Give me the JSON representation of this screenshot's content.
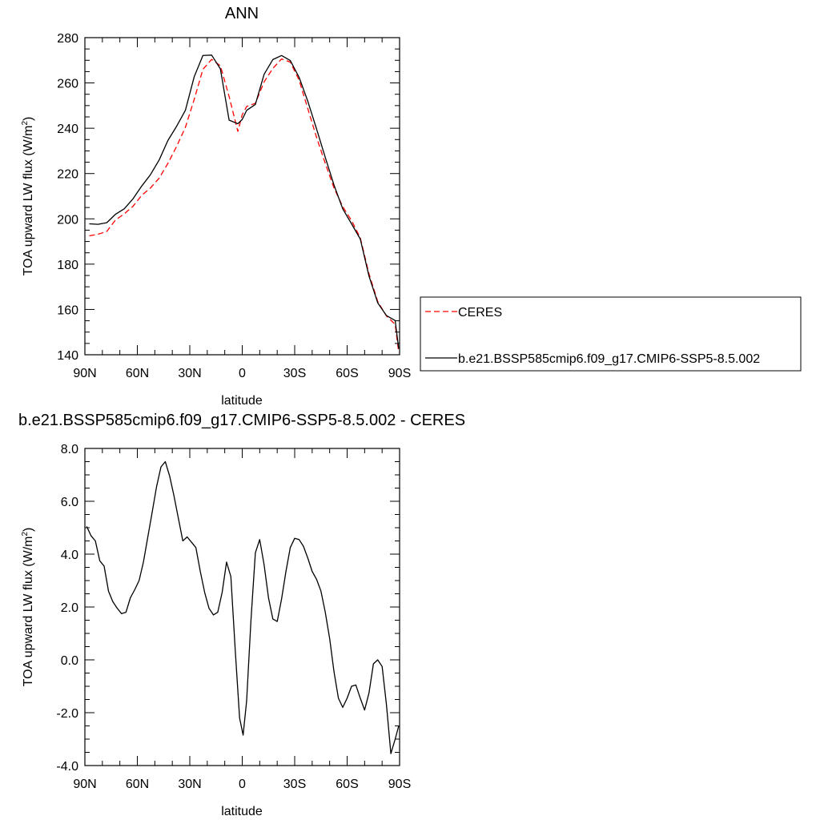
{
  "chart_data": [
    {
      "type": "line",
      "title": "ANN",
      "xlabel": "latitude",
      "ylabel_base": "TOA upward LW flux (W/m",
      "ylabel_sup": "2",
      "ylabel_end": ")",
      "xlim": [
        90,
        -90
      ],
      "ylim": [
        140,
        280
      ],
      "x_ticks": [
        90,
        60,
        30,
        0,
        -30,
        -60,
        -90
      ],
      "x_tick_labels": [
        "90N",
        "60N",
        "30N",
        "0",
        "30S",
        "60S",
        "90S"
      ],
      "y_ticks": [
        140,
        160,
        180,
        200,
        220,
        240,
        260,
        280
      ],
      "y_tick_labels": [
        "140",
        "160",
        "180",
        "200",
        "220",
        "240",
        "260",
        "280"
      ],
      "legend_position": "right",
      "series": [
        {
          "name": "CERES",
          "color": "#ff0000",
          "dash": "dashed",
          "x": [
            87.5,
            82.5,
            77.5,
            72.5,
            67.5,
            62.5,
            57.5,
            52.5,
            47.5,
            42.5,
            37.5,
            32.5,
            27.5,
            22.5,
            17.5,
            12.5,
            7.5,
            2.5,
            0,
            -2.5,
            -7.5,
            -12.5,
            -17.5,
            -22.5,
            -27.5,
            -32.5,
            -37.5,
            -42.5,
            -47.5,
            -52.5,
            -57.5,
            -62.5,
            -67.5,
            -72.5,
            -77.5,
            -82.5,
            -87.5,
            -89.5
          ],
          "y": [
            192.5,
            193.2,
            194.4,
            199.5,
            202.2,
            205.5,
            210.4,
            213.6,
            218,
            224.5,
            232,
            240.4,
            252.7,
            266,
            270.4,
            267.6,
            254,
            238.6,
            246,
            249.6,
            251,
            260.5,
            266.4,
            270.6,
            269.2,
            261.3,
            248.6,
            236,
            224.5,
            213.6,
            205.4,
            199.2,
            191.6,
            175.7,
            163.5,
            157.1,
            153.4,
            141
          ]
        },
        {
          "name": "b.e21.BSSP585cmip6.f09_g17.CMIP6-SSP5-8.5.002",
          "color": "#000000",
          "dash": "solid",
          "x": [
            87.5,
            82.5,
            77.5,
            72.5,
            67.5,
            62.5,
            57.5,
            52.5,
            47.5,
            42.5,
            37.5,
            32.5,
            27.5,
            22.5,
            17.5,
            12.5,
            7.5,
            2.5,
            0,
            -2.5,
            -7.5,
            -12.5,
            -17.5,
            -22.5,
            -27.5,
            -32.5,
            -37.5,
            -42.5,
            -47.5,
            -52.5,
            -57.5,
            -62.5,
            -67.5,
            -72.5,
            -77.5,
            -82.5,
            -87.5,
            -89.5
          ],
          "y": [
            197.8,
            197.6,
            198.3,
            202,
            204.4,
            208.8,
            214.5,
            219.5,
            226,
            234.6,
            240.9,
            247.9,
            262.7,
            272.1,
            272.3,
            266.2,
            243.6,
            242,
            243.9,
            247.9,
            250.5,
            263.8,
            270.3,
            272.1,
            269.9,
            262.5,
            251.9,
            239.7,
            227.1,
            214.9,
            204.4,
            197.8,
            191.1,
            174.7,
            162.9,
            157.3,
            155.1,
            142.7
          ]
        }
      ]
    },
    {
      "type": "line",
      "title": "b.e21.BSSP585cmip6.f09_g17.CMIP6-SSP5-8.5.002 - CERES",
      "xlabel": "latitude",
      "ylabel_base": "TOA upward LW flux (W/m",
      "ylabel_sup": "2",
      "ylabel_end": ")",
      "xlim": [
        90,
        -90
      ],
      "ylim": [
        -4,
        8
      ],
      "x_ticks": [
        90,
        60,
        30,
        0,
        -30,
        -60,
        -90
      ],
      "x_tick_labels": [
        "90N",
        "60N",
        "30N",
        "0",
        "30S",
        "60S",
        "90S"
      ],
      "y_ticks": [
        -4,
        -2,
        0,
        2,
        4,
        6,
        8
      ],
      "y_tick_labels": [
        "-4.0",
        "-2.0",
        "0.0",
        "2.0",
        "4.0",
        "6.0",
        "8.0"
      ],
      "series": [
        {
          "color": "#000000",
          "dash": "solid",
          "x": [
            89,
            86.5,
            84,
            81.5,
            79,
            76.5,
            74,
            71.5,
            69,
            66.5,
            64,
            61.5,
            59,
            56.5,
            54,
            51.5,
            49,
            46.5,
            44,
            41.5,
            39,
            36.5,
            34,
            31.5,
            29,
            26.5,
            24,
            21.5,
            19,
            16.5,
            14,
            11.5,
            9,
            6.5,
            4,
            1.5,
            -0.5,
            -2.5,
            -5,
            -7.5,
            -10,
            -12.5,
            -15,
            -17.5,
            -20,
            -22.5,
            -25,
            -27.5,
            -30,
            -32.5,
            -35,
            -37.5,
            -40,
            -42.5,
            -45,
            -47.5,
            -50,
            -52.5,
            -55,
            -57.5,
            -60,
            -62.5,
            -65,
            -67.5,
            -70,
            -72.5,
            -75,
            -77.5,
            -80,
            -82.5,
            -85,
            -87.5,
            -89.5
          ],
          "y": [
            5.05,
            4.7,
            4.5,
            3.75,
            3.55,
            2.6,
            2.2,
            1.95,
            1.75,
            1.8,
            2.35,
            2.65,
            3.0,
            3.7,
            4.65,
            5.6,
            6.55,
            7.3,
            7.5,
            6.95,
            6.2,
            5.35,
            4.5,
            4.65,
            4.45,
            4.25,
            3.35,
            2.55,
            1.95,
            1.7,
            1.8,
            2.55,
            3.7,
            3.15,
            0.35,
            -2.2,
            -2.85,
            -1.55,
            1.5,
            4.05,
            4.55,
            3.6,
            2.35,
            1.55,
            1.45,
            2.3,
            3.35,
            4.25,
            4.6,
            4.55,
            4.3,
            3.85,
            3.35,
            3.05,
            2.6,
            1.8,
            0.8,
            -0.45,
            -1.45,
            -1.8,
            -1.45,
            -1.0,
            -0.95,
            -1.45,
            -1.9,
            -1.25,
            -0.15,
            0,
            -0.25,
            -1.7,
            -3.55,
            -3.0,
            -2.5
          ]
        }
      ]
    }
  ]
}
